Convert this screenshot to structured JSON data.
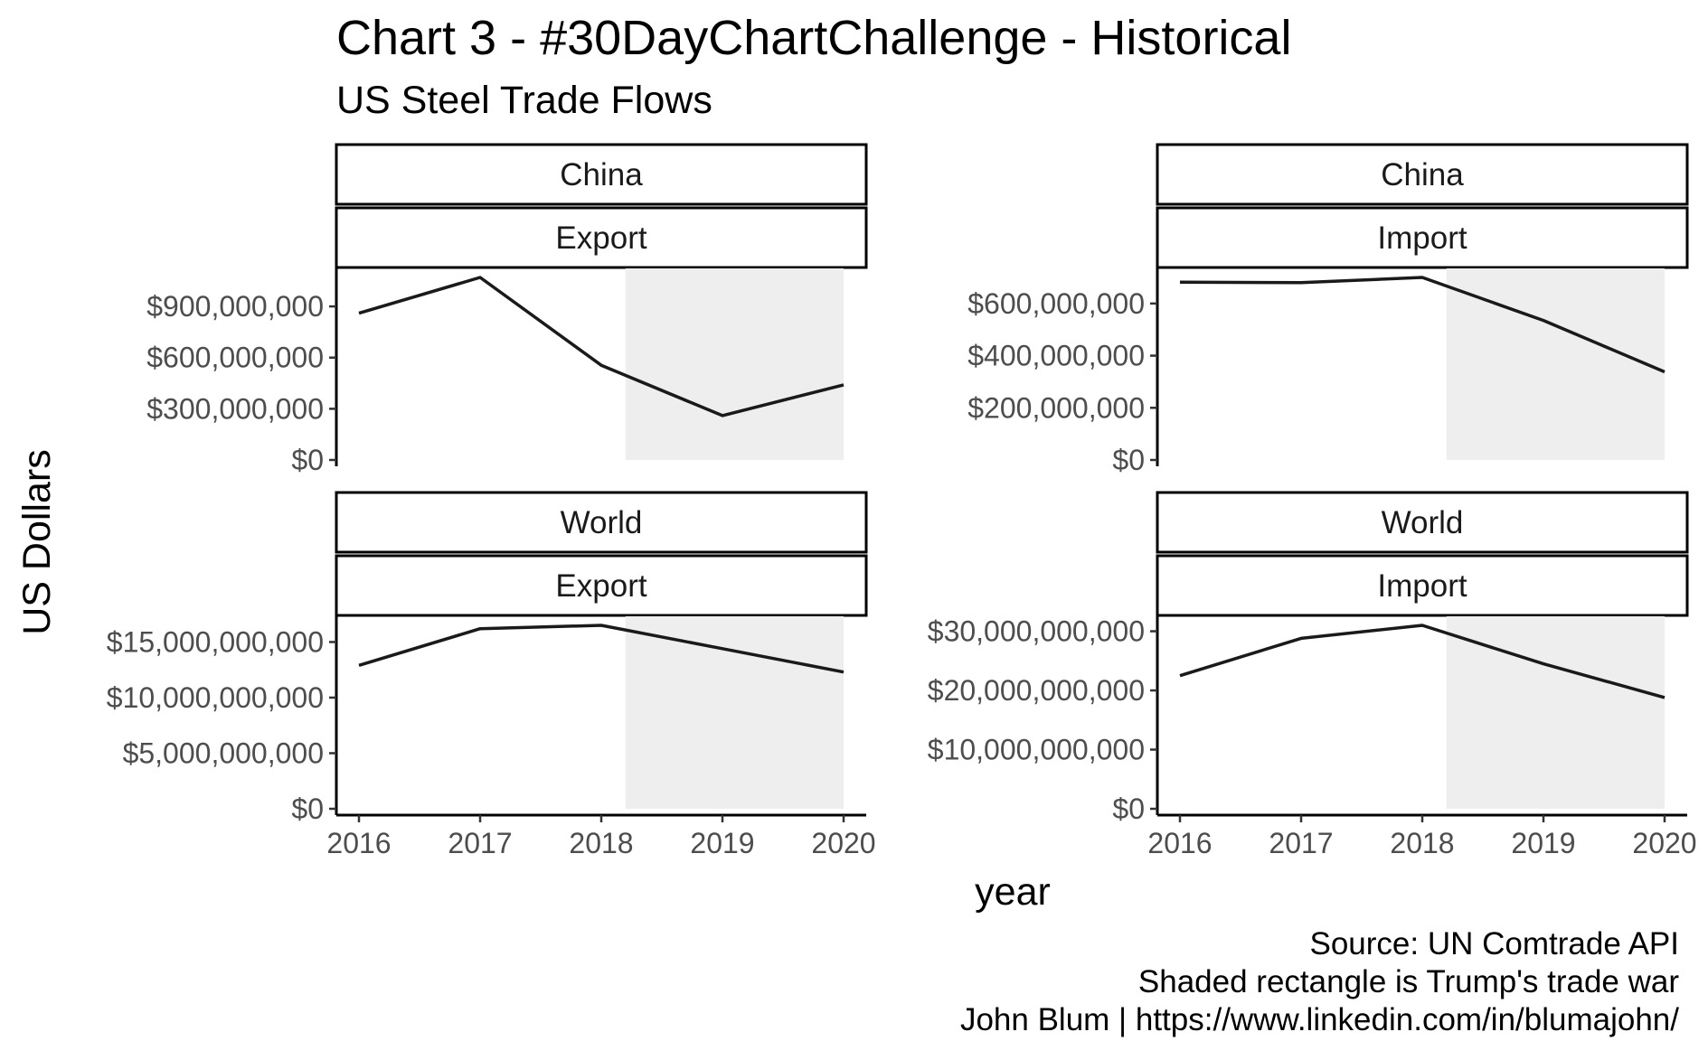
{
  "chart_data": {
    "type": "line",
    "title": "Chart 3 - #30DayChartChallenge - Historical",
    "subtitle": "US Steel Trade Flows",
    "xlabel": "year",
    "ylabel": "US Dollars",
    "caption": [
      "Source: UN Comtrade API",
      "Shaded rectangle is Trump's trade war",
      "John Blum | https://www.linkedin.com/in/blumajohn/"
    ],
    "x": [
      2016,
      2017,
      2018,
      2019,
      2020
    ],
    "x_ticks": [
      "2016",
      "2017",
      "2018",
      "2019",
      "2020"
    ],
    "shaded_region": {
      "x_start": 2018.2,
      "x_end": 2020,
      "color": "#eeeeee"
    },
    "line_color": "#1a1a1a",
    "grid": false,
    "facets": [
      {
        "partner": "China",
        "flow": "Export",
        "values": [
          860000000,
          1070000000,
          555000000,
          260000000,
          440000000
        ],
        "ylim": [
          0,
          1070000000
        ],
        "y_ticks": [
          0,
          300000000,
          600000000,
          900000000
        ],
        "y_tick_labels": [
          "$0",
          "$300,000,000",
          "$600,000,000",
          "$900,000,000"
        ]
      },
      {
        "partner": "China",
        "flow": "Import",
        "values": [
          682000000,
          680000000,
          700000000,
          535000000,
          338000000
        ],
        "ylim": [
          0,
          700000000
        ],
        "y_ticks": [
          0,
          200000000,
          400000000,
          600000000
        ],
        "y_tick_labels": [
          "$0",
          "$200,000,000",
          "$400,000,000",
          "$600,000,000"
        ]
      },
      {
        "partner": "World",
        "flow": "Export",
        "values": [
          12900000000,
          16200000000,
          16500000000,
          14400000000,
          12300000000
        ],
        "ylim": [
          0,
          16500000000
        ],
        "y_ticks": [
          0,
          5000000000,
          10000000000,
          15000000000
        ],
        "y_tick_labels": [
          "$0",
          "$5,000,000,000",
          "$10,000,000,000",
          "$15,000,000,000"
        ]
      },
      {
        "partner": "World",
        "flow": "Import",
        "values": [
          22500000000,
          28800000000,
          31000000000,
          24500000000,
          18800000000
        ],
        "ylim": [
          0,
          31000000000
        ],
        "y_ticks": [
          0,
          10000000000,
          20000000000,
          30000000000
        ],
        "y_tick_labels": [
          "$0",
          "$10,000,000,000",
          "$20,000,000,000",
          "$30,000,000,000"
        ]
      }
    ]
  }
}
